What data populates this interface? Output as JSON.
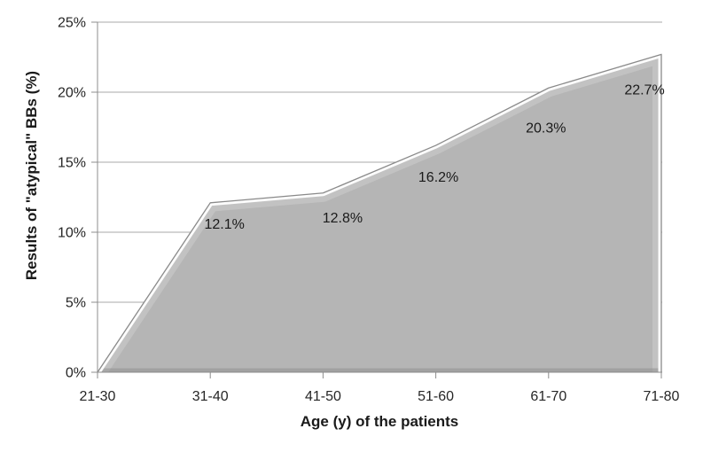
{
  "chart_data": {
    "type": "area",
    "title": "",
    "xlabel": "Age (y) of the patients",
    "ylabel": "Results of \"atypical\" BBs (%)",
    "categories": [
      "21-30",
      "31-40",
      "41-50",
      "51-60",
      "61-70",
      "71-80"
    ],
    "values": [
      0,
      12.1,
      12.8,
      16.2,
      20.3,
      22.7
    ],
    "data_labels": [
      "",
      "12.1%",
      "12.8%",
      "16.2%",
      "20.3%",
      "22.7%"
    ],
    "ylim": [
      0,
      25
    ],
    "ytick_step": 5,
    "ytick_labels": [
      "0%",
      "5%",
      "10%",
      "15%",
      "20%",
      "25%"
    ],
    "grid": "horizontal",
    "legend": "none",
    "colors": {
      "area_fill": "#b5b5b5",
      "area_outline": "#8a8a8a",
      "bevel_highlight": "#ffffff",
      "bevel_soft": "#d2d2d2",
      "bottom_shadow": "#8e8e8e",
      "gridline": "#a8a8a8",
      "axis_line": "#8c8c8c",
      "text": "#262626",
      "background": "#ffffff"
    }
  }
}
